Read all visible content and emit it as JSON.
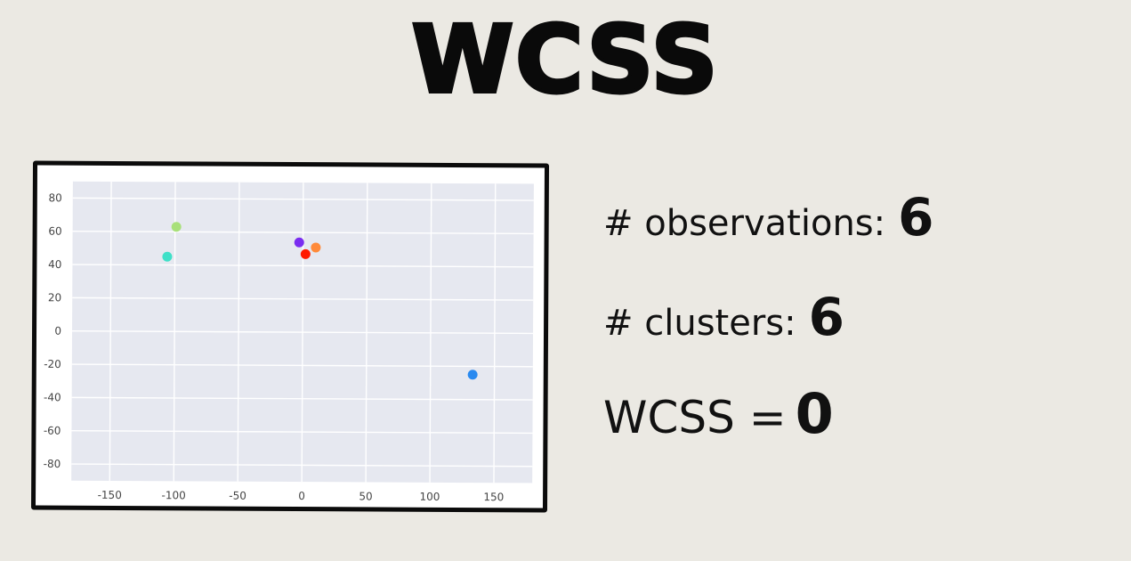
{
  "title": "WCSS",
  "stats": {
    "observations_label": "# observations:",
    "observations_value": "6",
    "clusters_label": "# clusters:",
    "clusters_value": "6",
    "wcss_label": "WCSS =",
    "wcss_value": "0"
  },
  "chart_data": {
    "type": "scatter",
    "xlim": [
      -180,
      180
    ],
    "ylim": [
      -90,
      90
    ],
    "xticks": [
      -150,
      -100,
      -50,
      0,
      50,
      100,
      150
    ],
    "yticks": [
      80,
      60,
      40,
      20,
      0,
      -20,
      -40,
      -60,
      -80
    ],
    "grid": true,
    "points": [
      {
        "x": -106,
        "y": 45,
        "color": "#3fe0c8"
      },
      {
        "x": -99,
        "y": 63,
        "color": "#a8e07a"
      },
      {
        "x": -3,
        "y": 54,
        "color": "#7a2cf0"
      },
      {
        "x": 2,
        "y": 47,
        "color": "#ff1a00"
      },
      {
        "x": 10,
        "y": 51,
        "color": "#ff8a3a"
      },
      {
        "x": 133,
        "y": -25,
        "color": "#2a8af0"
      }
    ]
  }
}
